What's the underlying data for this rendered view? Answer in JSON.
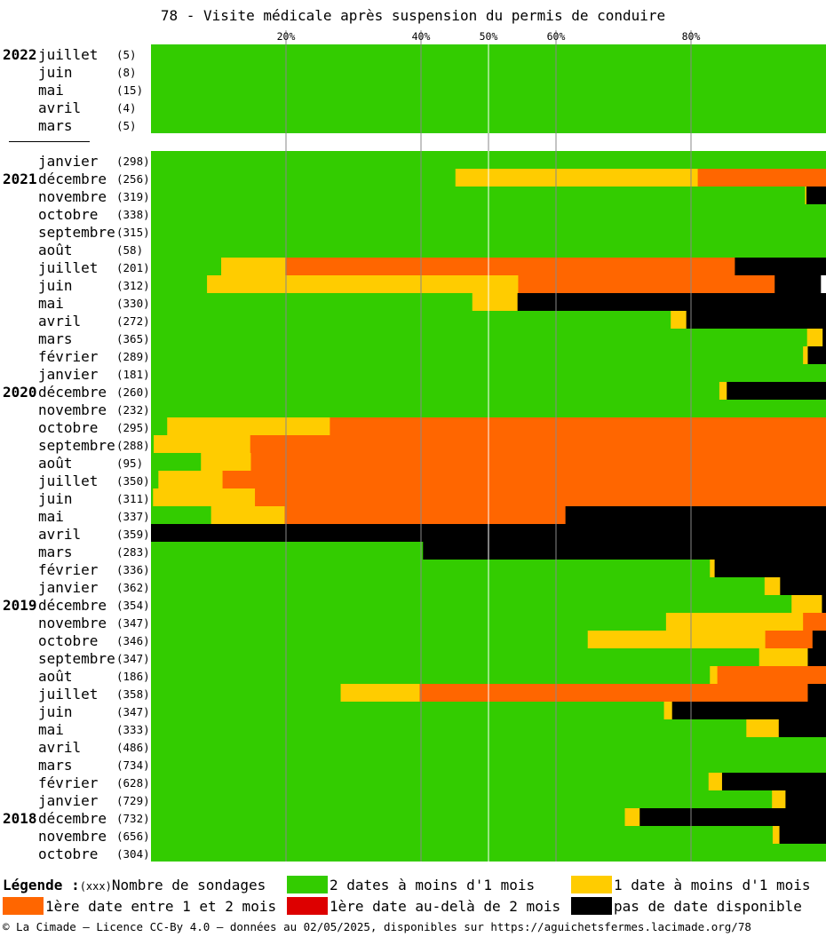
{
  "title": "78 - Visite médicale après suspension du permis de conduire",
  "chart_data": {
    "type": "bar",
    "orientation": "horizontal-stacked-percent",
    "xlim": [
      0,
      100
    ],
    "grid": "vertical",
    "x_ticks": [
      {
        "value": 20,
        "label": "20%"
      },
      {
        "value": 40,
        "label": "40%"
      },
      {
        "value": 50,
        "label": "50%"
      },
      {
        "value": 60,
        "label": "60%"
      },
      {
        "value": 80,
        "label": "80%"
      }
    ],
    "series": [
      {
        "key": "green",
        "name": "2 dates à moins d'1 mois",
        "color": "#33cc00"
      },
      {
        "key": "yellow",
        "name": "1 date à moins d'1 mois",
        "color": "#ffcc00"
      },
      {
        "key": "orange",
        "name": "1ère date entre 1 et 2 mois",
        "color": "#ff6600"
      },
      {
        "key": "red",
        "name": "1ère date au-delà de 2 mois",
        "color": "#dd0000"
      },
      {
        "key": "black",
        "name": "pas de date disponible",
        "color": "#000000"
      }
    ],
    "groups": [
      {
        "rows": [
          {
            "year": "2022",
            "month": "juillet",
            "count": "(5)",
            "values": [
              100,
              0,
              0,
              0,
              0
            ]
          },
          {
            "year": "",
            "month": "juin",
            "count": "(8)",
            "values": [
              100,
              0,
              0,
              0,
              0
            ]
          },
          {
            "year": "",
            "month": "mai",
            "count": "(15)",
            "values": [
              100,
              0,
              0,
              0,
              0
            ]
          },
          {
            "year": "",
            "month": "avril",
            "count": "(4)",
            "values": [
              100,
              0,
              0,
              0,
              0
            ]
          },
          {
            "year": "",
            "month": "mars",
            "count": "(5)",
            "values": [
              100,
              0,
              0,
              0,
              0
            ]
          }
        ]
      },
      {
        "rows": [
          {
            "year": "",
            "month": "janvier",
            "count": "(298)",
            "values": [
              100,
              0,
              0,
              0,
              0
            ]
          },
          {
            "year": "2021",
            "month": "décembre",
            "count": "(256)",
            "values": [
              45.1,
              35.9,
              19.0,
              0,
              0
            ]
          },
          {
            "year": "",
            "month": "novembre",
            "count": "(319)",
            "values": [
              96.9,
              0.2,
              0,
              0,
              2.9
            ]
          },
          {
            "year": "",
            "month": "octobre",
            "count": "(338)",
            "values": [
              100,
              0,
              0,
              0,
              0
            ]
          },
          {
            "year": "",
            "month": "septembre",
            "count": "(315)",
            "values": [
              100,
              0,
              0,
              0,
              0
            ]
          },
          {
            "year": "",
            "month": "août",
            "count": "(58)",
            "values": [
              100,
              0,
              0,
              0,
              0
            ]
          },
          {
            "year": "",
            "month": "juillet",
            "count": "(201)",
            "values": [
              10.4,
              9.5,
              66.6,
              0,
              13.5
            ]
          },
          {
            "year": "",
            "month": "juin",
            "count": "(312)",
            "values": [
              8.3,
              46.1,
              38.0,
              0,
              6.8
            ]
          },
          {
            "year": "",
            "month": "mai",
            "count": "(330)",
            "values": [
              47.6,
              6.7,
              0,
              0,
              45.7
            ]
          },
          {
            "year": "",
            "month": "avril",
            "count": "(272)",
            "values": [
              77.0,
              2.3,
              0,
              0,
              20.7
            ]
          },
          {
            "year": "",
            "month": "mars",
            "count": "(365)",
            "values": [
              97.2,
              2.3,
              0,
              0,
              0.5
            ]
          },
          {
            "year": "",
            "month": "février",
            "count": "(289)",
            "values": [
              96.6,
              0.7,
              0,
              0,
              2.7
            ]
          },
          {
            "year": "",
            "month": "janvier",
            "count": "(181)",
            "values": [
              100,
              0,
              0,
              0,
              0
            ]
          },
          {
            "year": "2020",
            "month": "décembre",
            "count": "(260)",
            "values": [
              84.2,
              1.1,
              0,
              0,
              14.7
            ]
          },
          {
            "year": "",
            "month": "novembre",
            "count": "(232)",
            "values": [
              100,
              0,
              0,
              0,
              0
            ]
          },
          {
            "year": "",
            "month": "octobre",
            "count": "(295)",
            "values": [
              2.4,
              24.1,
              73.5,
              0,
              0
            ]
          },
          {
            "year": "",
            "month": "septembre",
            "count": "(288)",
            "values": [
              0.4,
              14.3,
              85.3,
              0,
              0
            ]
          },
          {
            "year": "",
            "month": "août",
            "count": "(95)",
            "values": [
              7.4,
              7.4,
              85.2,
              0,
              0
            ]
          },
          {
            "year": "",
            "month": "juillet",
            "count": "(350)",
            "values": [
              1.1,
              9.5,
              89.4,
              0,
              0
            ]
          },
          {
            "year": "",
            "month": "juin",
            "count": "(311)",
            "values": [
              0.3,
              15.1,
              84.6,
              0,
              0
            ]
          },
          {
            "year": "",
            "month": "mai",
            "count": "(337)",
            "values": [
              8.9,
              10.9,
              41.6,
              0,
              38.6
            ]
          },
          {
            "year": "",
            "month": "avril",
            "count": "(359)",
            "values": [
              0,
              0,
              0,
              0,
              100
            ]
          },
          {
            "year": "",
            "month": "mars",
            "count": "(283)",
            "values": [
              40.3,
              0,
              0,
              0,
              59.7
            ]
          },
          {
            "year": "",
            "month": "février",
            "count": "(336)",
            "values": [
              82.8,
              0.7,
              0,
              0,
              16.5
            ]
          },
          {
            "year": "",
            "month": "janvier",
            "count": "(362)",
            "values": [
              90.9,
              2.3,
              0,
              0,
              6.8
            ]
          },
          {
            "year": "2019",
            "month": "décembre",
            "count": "(354)",
            "values": [
              94.9,
              4.5,
              0,
              0,
              0.6
            ]
          },
          {
            "year": "",
            "month": "novembre",
            "count": "(347)",
            "values": [
              76.3,
              20.3,
              3.4,
              0,
              0
            ]
          },
          {
            "year": "",
            "month": "octobre",
            "count": "(346)",
            "values": [
              64.7,
              26.3,
              7.0,
              0,
              2.0
            ]
          },
          {
            "year": "",
            "month": "septembre",
            "count": "(347)",
            "values": [
              90.1,
              7.2,
              0,
              0,
              2.7
            ]
          },
          {
            "year": "",
            "month": "août",
            "count": "(186)",
            "values": [
              82.8,
              1.1,
              16.1,
              0,
              0
            ]
          },
          {
            "year": "",
            "month": "juillet",
            "count": "(358)",
            "values": [
              28.1,
              11.7,
              57.5,
              0,
              2.7
            ]
          },
          {
            "year": "",
            "month": "juin",
            "count": "(347)",
            "values": [
              76.0,
              1.2,
              0,
              0,
              22.8
            ]
          },
          {
            "year": "",
            "month": "mai",
            "count": "(333)",
            "values": [
              88.2,
              4.8,
              0,
              0,
              7.0
            ]
          },
          {
            "year": "",
            "month": "avril",
            "count": "(486)",
            "values": [
              100,
              0,
              0,
              0,
              0
            ]
          },
          {
            "year": "",
            "month": "mars",
            "count": "(734)",
            "values": [
              100,
              0,
              0,
              0,
              0
            ]
          },
          {
            "year": "",
            "month": "février",
            "count": "(628)",
            "values": [
              82.6,
              2.0,
              0,
              0,
              15.4
            ]
          },
          {
            "year": "",
            "month": "janvier",
            "count": "(729)",
            "values": [
              92.0,
              2.0,
              0,
              0,
              6.0
            ]
          },
          {
            "year": "2018",
            "month": "décembre",
            "count": "(732)",
            "values": [
              70.2,
              2.2,
              0,
              0,
              27.6
            ]
          },
          {
            "year": "",
            "month": "novembre",
            "count": "(656)",
            "values": [
              92.1,
              1.0,
              0,
              0,
              6.9
            ]
          },
          {
            "year": "",
            "month": "octobre",
            "count": "(304)",
            "values": [
              100,
              0,
              0,
              0,
              0
            ]
          }
        ]
      }
    ]
  },
  "legend": {
    "label": "Légende :",
    "count_sample": "(xxx)",
    "count_text": "Nombre de sondages"
  },
  "footer": "© La Cimade — Licence CC-By 4.0 — données au 02/05/2025, disponibles sur https://aguichetsfermes.lacimade.org/78"
}
